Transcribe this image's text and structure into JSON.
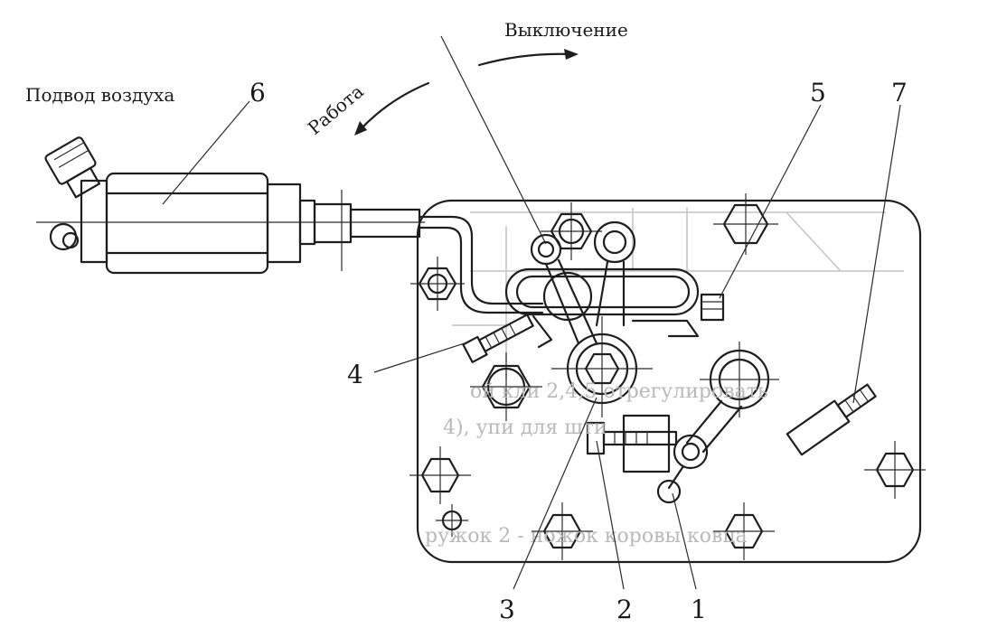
{
  "labels": {
    "air_supply": "Подвод воздуха",
    "shutdown": "Выключение",
    "operation": "Работа",
    "callout_1": "1",
    "callout_2": "2",
    "callout_3": "3",
    "callout_4": "4",
    "callout_5": "5",
    "callout_6": "6",
    "callout_7": "7"
  }
}
